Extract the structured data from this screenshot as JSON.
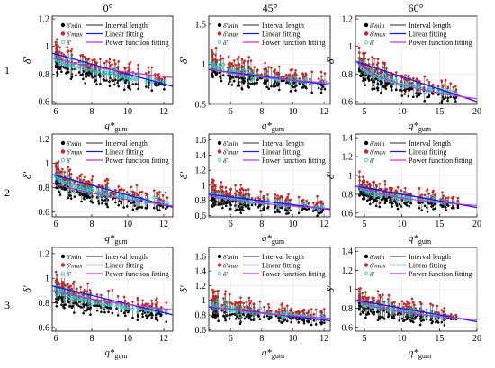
{
  "figure": {
    "column_titles": [
      "0°",
      "45°",
      "60°"
    ],
    "row_labels": [
      "1",
      "2",
      "3"
    ],
    "legend": {
      "interval_label": "Interval length",
      "linear_label": "Linear fitting",
      "power_label": "Power function fitting",
      "marker_labels": [
        "δ'min",
        "δ'max",
        "δ'"
      ]
    },
    "xlabel_main": "q*",
    "xlabel_sub": "gum",
    "ylabel": "δ'",
    "colors": {
      "interval": "#555555",
      "min_marker": "#000000",
      "max_marker": "#cc2222",
      "mean_marker": "#33c8c8",
      "linear": "#1a1aee",
      "power": "#cc33cc",
      "grid": "#e4e4e4"
    }
  },
  "chart_data": [
    {
      "type": "scatter",
      "panel": "row1-0°",
      "xlim": [
        5.8,
        12.5
      ],
      "ylim": [
        0.58,
        1.22
      ],
      "xticks": [
        6,
        8,
        10,
        12
      ],
      "yticks": [
        0.6,
        0.8,
        1,
        1.2
      ],
      "x_range": [
        6,
        12.2
      ],
      "center_at_xmin": 0.93,
      "center_at_xmax": 0.74,
      "spread": 0.18,
      "linear": {
        "slope": -0.036,
        "intercept": 1.16
      },
      "power": {
        "a": 1.35,
        "b": -0.22
      }
    },
    {
      "type": "scatter",
      "panel": "row1-45°",
      "xlim": [
        4.6,
        12.4
      ],
      "ylim": [
        0.5,
        1.6
      ],
      "xticks": [
        6,
        8,
        10,
        12
      ],
      "yticks": [
        0.5,
        1,
        1.5
      ],
      "x_range": [
        4.8,
        12.1
      ],
      "center_at_xmin": 1.0,
      "center_at_xmax": 0.76,
      "spread": 0.32,
      "linear": {
        "slope": -0.025,
        "intercept": 1.05
      },
      "power": {
        "a": 1.3,
        "b": -0.21
      }
    },
    {
      "type": "scatter",
      "panel": "row1-60°",
      "xlim": [
        3.8,
        20
      ],
      "ylim": [
        0.58,
        1.22
      ],
      "xticks": [
        5,
        10,
        15,
        20
      ],
      "yticks": [
        0.6,
        0.8,
        1,
        1.2
      ],
      "x_range": [
        4.3,
        17.5
      ],
      "center_at_xmin": 0.88,
      "center_at_xmax": 0.65,
      "spread": 0.18,
      "linear": {
        "slope": -0.018,
        "intercept": 0.96
      },
      "power": {
        "a": 1.2,
        "b": -0.22
      }
    },
    {
      "type": "scatter",
      "panel": "row2-0°",
      "xlim": [
        5.8,
        12.5
      ],
      "ylim": [
        0.56,
        1.24
      ],
      "xticks": [
        6,
        8,
        10,
        12
      ],
      "yticks": [
        0.6,
        0.8,
        1,
        1.2
      ],
      "x_range": [
        6,
        12.2
      ],
      "center_at_xmin": 0.9,
      "center_at_xmax": 0.67,
      "spread": 0.2,
      "linear": {
        "slope": -0.04,
        "intercept": 1.14
      },
      "power": {
        "a": 1.5,
        "b": -0.33
      }
    },
    {
      "type": "scatter",
      "panel": "row2-45°",
      "xlim": [
        4.6,
        12.4
      ],
      "ylim": [
        0.58,
        1.68
      ],
      "xticks": [
        6,
        8,
        10,
        12
      ],
      "yticks": [
        0.6,
        0.8,
        1,
        1.2,
        1.4,
        1.6
      ],
      "x_range": [
        4.8,
        12.1
      ],
      "center_at_xmin": 0.9,
      "center_at_xmax": 0.7,
      "spread": 0.3,
      "linear": {
        "slope": -0.026,
        "intercept": 1.0
      },
      "power": {
        "a": 1.2,
        "b": -0.22
      }
    },
    {
      "type": "scatter",
      "panel": "row2-60°",
      "xlim": [
        3.8,
        20
      ],
      "ylim": [
        0.56,
        1.44
      ],
      "xticks": [
        5,
        10,
        15,
        20
      ],
      "yticks": [
        0.6,
        0.8,
        1,
        1.2,
        1.4
      ],
      "x_range": [
        4.3,
        17.5
      ],
      "center_at_xmin": 0.88,
      "center_at_xmax": 0.7,
      "spread": 0.24,
      "linear": {
        "slope": -0.014,
        "intercept": 0.94
      },
      "power": {
        "a": 1.1,
        "b": -0.16
      }
    },
    {
      "type": "scatter",
      "panel": "row3-0°",
      "xlim": [
        5.8,
        12.5
      ],
      "ylim": [
        0.57,
        1.25
      ],
      "xticks": [
        6,
        8,
        10,
        12
      ],
      "yticks": [
        0.6,
        0.8,
        1,
        1.2
      ],
      "x_range": [
        6,
        12.2
      ],
      "center_at_xmin": 0.92,
      "center_at_xmax": 0.72,
      "spread": 0.2,
      "linear": {
        "slope": -0.035,
        "intercept": 1.14
      },
      "power": {
        "a": 1.4,
        "b": -0.25
      }
    },
    {
      "type": "scatter",
      "panel": "row3-45°",
      "xlim": [
        4.6,
        12.4
      ],
      "ylim": [
        0.58,
        1.72
      ],
      "xticks": [
        6,
        8,
        10,
        12
      ],
      "yticks": [
        0.6,
        0.8,
        1,
        1.2,
        1.4,
        1.6
      ],
      "x_range": [
        4.8,
        12.1
      ],
      "center_at_xmin": 0.95,
      "center_at_xmax": 0.76,
      "spread": 0.3,
      "linear": {
        "slope": -0.024,
        "intercept": 1.02
      },
      "power": {
        "a": 1.25,
        "b": -0.2
      }
    },
    {
      "type": "scatter",
      "panel": "row3-60°",
      "xlim": [
        3.8,
        20
      ],
      "ylim": [
        0.56,
        1.44
      ],
      "xticks": [
        5,
        10,
        15,
        20
      ],
      "yticks": [
        0.6,
        0.8,
        1,
        1.2,
        1.4
      ],
      "x_range": [
        4.3,
        17.5
      ],
      "center_at_xmin": 0.88,
      "center_at_xmax": 0.7,
      "spread": 0.24,
      "linear": {
        "slope": -0.014,
        "intercept": 0.94
      },
      "power": {
        "a": 1.1,
        "b": -0.16
      }
    }
  ]
}
